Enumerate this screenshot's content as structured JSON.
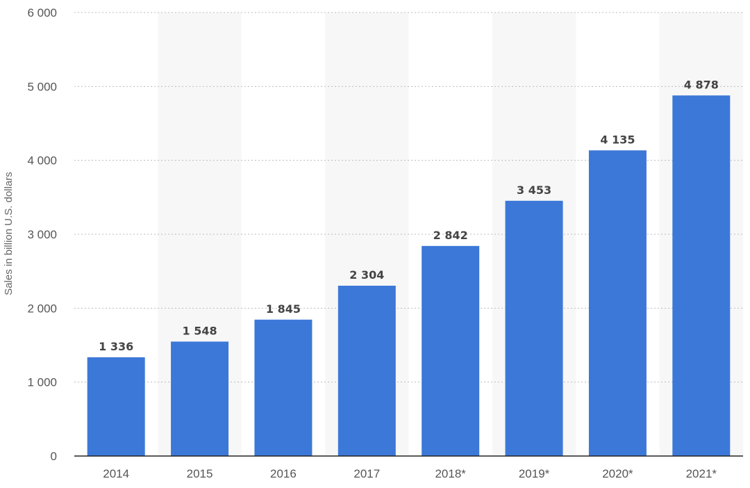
{
  "chart_data": {
    "type": "bar",
    "categories": [
      "2014",
      "2015",
      "2016",
      "2017",
      "2018*",
      "2019*",
      "2020*",
      "2021*"
    ],
    "values": [
      1336,
      1548,
      1845,
      2304,
      2842,
      3453,
      4135,
      4878
    ],
    "value_labels": [
      "1 336",
      "1 548",
      "1 845",
      "2 304",
      "2 842",
      "3 453",
      "4 135",
      "4 878"
    ],
    "title": "",
    "xlabel": "",
    "ylabel": "Sales in billion U.S. dollars",
    "ylim": [
      0,
      6000
    ],
    "yticks": [
      0,
      1000,
      2000,
      3000,
      4000,
      5000,
      6000
    ],
    "ytick_labels": [
      "0",
      "1 000",
      "2 000",
      "3 000",
      "4 000",
      "5 000",
      "6 000"
    ],
    "grid": true,
    "legend": "none",
    "bar_color": "#3c78d8",
    "band_color": "#f7f7f7"
  }
}
